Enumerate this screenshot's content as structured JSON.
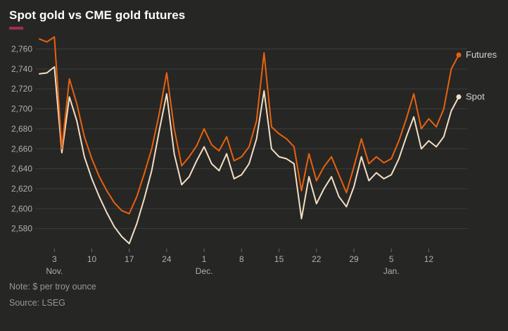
{
  "title": "Spot gold vs CME gold futures",
  "note": "Note: $ per troy ounce",
  "source": "Source: LSEG",
  "colors": {
    "background": "#262625",
    "accent": "#9e2f4f",
    "grid": "#3e3c39",
    "tick": "#6b6865",
    "axis_text": "#b3afa9",
    "futures_line": "#e8620d",
    "spot_line": "#f3dfc4"
  },
  "chart_data": {
    "type": "line",
    "title": "Spot gold vs CME gold futures",
    "ylabel": "$ per troy ounce",
    "ylim": [
      2560,
      2778
    ],
    "yticks": [
      2580,
      2600,
      2620,
      2640,
      2660,
      2680,
      2700,
      2720,
      2740,
      2760
    ],
    "grid": "horizontal",
    "legend_position": "right-end-labels",
    "x_ticks": [
      {
        "i": 2,
        "label": "3"
      },
      {
        "i": 7,
        "label": "10"
      },
      {
        "i": 12,
        "label": "17"
      },
      {
        "i": 17,
        "label": "24"
      },
      {
        "i": 22,
        "label": "1"
      },
      {
        "i": 27,
        "label": "8"
      },
      {
        "i": 32,
        "label": "15"
      },
      {
        "i": 37,
        "label": "22"
      },
      {
        "i": 42,
        "label": "29"
      },
      {
        "i": 47,
        "label": "5"
      },
      {
        "i": 52,
        "label": "12"
      }
    ],
    "month_labels": [
      {
        "i": 2,
        "label": "Nov."
      },
      {
        "i": 22,
        "label": "Dec."
      },
      {
        "i": 47,
        "label": "Jan."
      }
    ],
    "series": [
      {
        "name": "Futures",
        "color": "#e8620d",
        "values": [
          2770,
          2767,
          2772,
          2660,
          2730,
          2705,
          2672,
          2650,
          2632,
          2618,
          2606,
          2598,
          2595,
          2612,
          2635,
          2660,
          2695,
          2736,
          2680,
          2643,
          2652,
          2663,
          2680,
          2664,
          2658,
          2672,
          2648,
          2652,
          2662,
          2688,
          2756,
          2682,
          2675,
          2670,
          2662,
          2618,
          2655,
          2628,
          2642,
          2652,
          2634,
          2616,
          2642,
          2670,
          2645,
          2652,
          2646,
          2650,
          2668,
          2690,
          2715,
          2680,
          2690,
          2682,
          2700,
          2740,
          2754
        ]
      },
      {
        "name": "Spot",
        "color": "#f3dfc4",
        "values": [
          2735,
          2736,
          2742,
          2656,
          2712,
          2688,
          2652,
          2630,
          2612,
          2596,
          2582,
          2572,
          2565,
          2585,
          2610,
          2638,
          2678,
          2715,
          2655,
          2624,
          2632,
          2648,
          2662,
          2645,
          2638,
          2655,
          2630,
          2634,
          2645,
          2670,
          2718,
          2660,
          2652,
          2650,
          2645,
          2590,
          2632,
          2605,
          2620,
          2632,
          2612,
          2602,
          2622,
          2652,
          2628,
          2636,
          2630,
          2634,
          2650,
          2672,
          2692,
          2660,
          2668,
          2662,
          2672,
          2698,
          2712
        ]
      }
    ]
  }
}
